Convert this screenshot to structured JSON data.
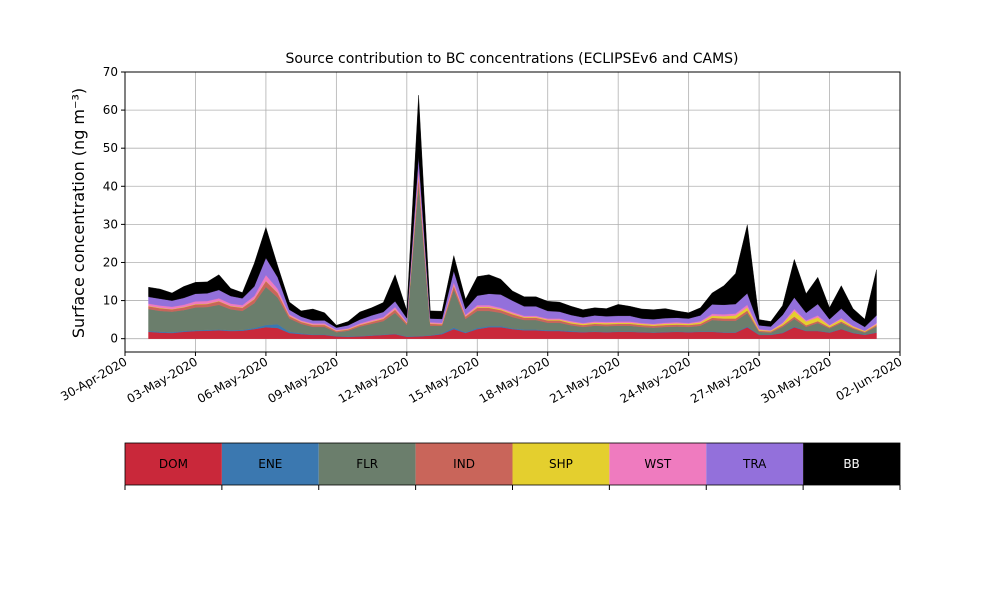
{
  "chart_data": {
    "type": "area",
    "title": "Source contribution to BC concentrations (ECLIPSEv6 and CAMS)",
    "xlabel": "",
    "ylabel": "Surface concentration (ng m⁻³)",
    "ylim": [
      -3.5,
      70
    ],
    "yticks": [
      0,
      10,
      20,
      30,
      40,
      50,
      60,
      70
    ],
    "xlim": [
      "2020-04-30",
      "2020-06-02"
    ],
    "xticks": [
      "30-Apr-2020",
      "03-May-2020",
      "06-May-2020",
      "09-May-2020",
      "12-May-2020",
      "15-May-2020",
      "18-May-2020",
      "21-May-2020",
      "24-May-2020",
      "27-May-2020",
      "30-May-2020",
      "02-Jun-2020"
    ],
    "grid": true,
    "stacked": true,
    "x": [
      "2020-05-01",
      "2020-05-01 12:00",
      "2020-05-02",
      "2020-05-02 12:00",
      "2020-05-03",
      "2020-05-03 12:00",
      "2020-05-04",
      "2020-05-04 12:00",
      "2020-05-05",
      "2020-05-05 12:00",
      "2020-05-06",
      "2020-05-06 12:00",
      "2020-05-07",
      "2020-05-07 12:00",
      "2020-05-08",
      "2020-05-08 12:00",
      "2020-05-09",
      "2020-05-09 12:00",
      "2020-05-10",
      "2020-05-10 12:00",
      "2020-05-11",
      "2020-05-11 12:00",
      "2020-05-12",
      "2020-05-12 12:00",
      "2020-05-13",
      "2020-05-13 12:00",
      "2020-05-14",
      "2020-05-14 12:00",
      "2020-05-15",
      "2020-05-15 12:00",
      "2020-05-16",
      "2020-05-16 12:00",
      "2020-05-17",
      "2020-05-17 12:00",
      "2020-05-18",
      "2020-05-18 12:00",
      "2020-05-19",
      "2020-05-19 12:00",
      "2020-05-20",
      "2020-05-20 12:00",
      "2020-05-21",
      "2020-05-21 12:00",
      "2020-05-22",
      "2020-05-22 12:00",
      "2020-05-23",
      "2020-05-23 12:00",
      "2020-05-24",
      "2020-05-24 12:00",
      "2020-05-25",
      "2020-05-25 12:00",
      "2020-05-26",
      "2020-05-26 12:00",
      "2020-05-27",
      "2020-05-27 12:00",
      "2020-05-28",
      "2020-05-28 12:00",
      "2020-05-29",
      "2020-05-29 12:00",
      "2020-05-30",
      "2020-05-30 12:00",
      "2020-05-31",
      "2020-05-31 12:00",
      "2020-06-01"
    ],
    "series": [
      {
        "name": "DOM",
        "color": "#c9283a",
        "values": [
          1.8,
          1.6,
          1.5,
          1.8,
          2.0,
          2.1,
          2.2,
          2.0,
          2.1,
          2.5,
          3.0,
          2.8,
          1.5,
          1.2,
          1.0,
          1.0,
          0.6,
          0.5,
          0.6,
          0.8,
          1.0,
          1.2,
          0.5,
          0.6,
          0.8,
          1.2,
          2.5,
          1.5,
          2.5,
          3.0,
          3.0,
          2.5,
          2.2,
          2.2,
          2.0,
          2.0,
          1.8,
          1.7,
          1.8,
          1.7,
          1.8,
          1.8,
          1.7,
          1.6,
          1.7,
          1.8,
          1.7,
          1.8,
          1.8,
          1.6,
          1.6,
          3.0,
          1.0,
          1.0,
          1.5,
          3.0,
          2.0,
          2.0,
          1.6,
          2.5,
          1.5,
          1.0,
          1.6
        ]
      },
      {
        "name": "ENE",
        "color": "#3b78b0",
        "values": [
          0.2,
          0.2,
          0.2,
          0.2,
          0.2,
          0.2,
          0.2,
          0.2,
          0.2,
          0.3,
          0.6,
          1.0,
          0.3,
          0.2,
          0.1,
          0.1,
          0.1,
          0.1,
          0.1,
          0.1,
          0.1,
          0.1,
          0.1,
          0.1,
          0.1,
          0.2,
          0.4,
          0.2,
          0.3,
          0.3,
          0.3,
          0.2,
          0.2,
          0.2,
          0.2,
          0.2,
          0.2,
          0.1,
          0.1,
          0.1,
          0.1,
          0.1,
          0.1,
          0.1,
          0.1,
          0.1,
          0.1,
          0.1,
          0.1,
          0.1,
          0.1,
          0.2,
          0.1,
          0.1,
          0.1,
          0.2,
          0.1,
          0.1,
          0.1,
          0.1,
          0.1,
          0.1,
          0.1
        ]
      },
      {
        "name": "FLR",
        "color": "#6b7e6c",
        "values": [
          5.8,
          5.5,
          5.4,
          5.5,
          6.0,
          6.0,
          6.5,
          5.5,
          5.0,
          6.5,
          10.0,
          7.0,
          3.5,
          2.5,
          2.0,
          2.0,
          1.0,
          1.5,
          2.5,
          3.0,
          3.5,
          5.5,
          3.0,
          40.0,
          2.5,
          2.0,
          10.0,
          3.5,
          4.5,
          4.0,
          3.5,
          3.0,
          2.5,
          2.5,
          2.0,
          2.0,
          1.5,
          1.3,
          1.5,
          1.5,
          1.5,
          1.5,
          1.3,
          1.2,
          1.3,
          1.3,
          1.3,
          1.5,
          3.0,
          3.0,
          3.0,
          3.5,
          0.7,
          0.5,
          1.5,
          2.0,
          1.0,
          2.0,
          1.0,
          1.5,
          1.0,
          0.5,
          1.5
        ]
      },
      {
        "name": "IND",
        "color": "#c9655a",
        "values": [
          0.7,
          0.7,
          0.6,
          0.7,
          0.8,
          0.8,
          0.9,
          0.8,
          0.8,
          1.0,
          1.5,
          1.2,
          0.6,
          0.5,
          0.5,
          0.5,
          0.3,
          0.3,
          0.4,
          0.5,
          0.6,
          0.8,
          0.4,
          2.0,
          0.5,
          0.4,
          1.0,
          0.6,
          0.8,
          0.8,
          0.7,
          0.7,
          0.6,
          0.6,
          0.6,
          0.6,
          0.5,
          0.5,
          0.5,
          0.5,
          0.5,
          0.5,
          0.5,
          0.5,
          0.5,
          0.5,
          0.5,
          0.5,
          0.6,
          0.6,
          0.6,
          0.7,
          0.3,
          0.3,
          0.4,
          0.6,
          0.4,
          0.5,
          0.3,
          0.4,
          0.3,
          0.2,
          0.4
        ]
      },
      {
        "name": "SHP",
        "color": "#e4cf2e",
        "values": [
          0.1,
          0.1,
          0.1,
          0.1,
          0.1,
          0.1,
          0.1,
          0.1,
          0.1,
          0.1,
          0.1,
          0.1,
          0.1,
          0.1,
          0.1,
          0.1,
          0.1,
          0.1,
          0.1,
          0.1,
          0.1,
          0.1,
          0.1,
          0.2,
          0.1,
          0.1,
          0.1,
          0.1,
          0.2,
          0.2,
          0.2,
          0.2,
          0.2,
          0.2,
          0.2,
          0.2,
          0.3,
          0.3,
          0.3,
          0.3,
          0.3,
          0.3,
          0.3,
          0.3,
          0.3,
          0.3,
          0.3,
          0.4,
          0.5,
          0.6,
          0.8,
          0.8,
          0.2,
          0.2,
          0.4,
          1.5,
          1.0,
          1.0,
          0.4,
          0.6,
          0.3,
          0.2,
          0.2
        ]
      },
      {
        "name": "WST",
        "color": "#ef7bbf",
        "values": [
          0.6,
          0.6,
          0.6,
          0.6,
          0.7,
          0.7,
          0.7,
          0.6,
          0.6,
          0.8,
          1.5,
          1.0,
          0.4,
          0.3,
          0.3,
          0.3,
          0.2,
          0.2,
          0.3,
          0.4,
          0.4,
          0.6,
          0.3,
          2.0,
          0.3,
          0.3,
          0.8,
          0.4,
          0.5,
          0.5,
          0.4,
          0.4,
          0.3,
          0.3,
          0.3,
          0.3,
          0.3,
          0.2,
          0.3,
          0.3,
          0.3,
          0.3,
          0.2,
          0.2,
          0.3,
          0.3,
          0.2,
          0.3,
          0.5,
          0.5,
          0.5,
          0.7,
          0.2,
          0.1,
          0.3,
          0.5,
          0.3,
          0.5,
          0.2,
          0.3,
          0.2,
          0.1,
          0.3
        ]
      },
      {
        "name": "TRA",
        "color": "#9370db",
        "values": [
          1.8,
          1.8,
          1.6,
          1.8,
          2.0,
          2.0,
          2.2,
          2.0,
          1.8,
          2.5,
          4.5,
          3.0,
          1.2,
          1.0,
          0.8,
          0.8,
          0.6,
          0.8,
          1.0,
          1.2,
          1.3,
          1.5,
          1.0,
          3.0,
          1.0,
          1.0,
          3.0,
          1.5,
          2.5,
          3.0,
          3.5,
          3.0,
          2.5,
          2.5,
          2.0,
          1.8,
          1.6,
          1.5,
          1.6,
          1.5,
          1.5,
          1.5,
          1.2,
          1.2,
          1.2,
          1.2,
          1.2,
          1.5,
          2.5,
          2.5,
          2.5,
          3.0,
          1.0,
          1.0,
          2.0,
          3.0,
          2.0,
          3.0,
          1.5,
          2.5,
          1.5,
          1.0,
          2.0
        ]
      },
      {
        "name": "BB",
        "color": "#000000",
        "values": [
          2.5,
          2.5,
          2.0,
          3.0,
          3.0,
          3.0,
          4.0,
          2.0,
          1.5,
          6.0,
          8.0,
          3.0,
          2.0,
          1.5,
          3.0,
          2.0,
          0.6,
          1.0,
          2.0,
          2.0,
          2.5,
          7.0,
          2.0,
          16.0,
          2.0,
          2.0,
          4.0,
          2.5,
          5.0,
          5.0,
          4.0,
          2.5,
          2.5,
          2.5,
          2.5,
          2.5,
          2.3,
          2.0,
          2.0,
          2.0,
          3.0,
          2.5,
          2.5,
          2.5,
          2.5,
          1.8,
          1.5,
          2.0,
          3.0,
          5.0,
          8.0,
          18.0,
          1.5,
          1.3,
          2.5,
          10.0,
          5.0,
          7.0,
          3.0,
          6.0,
          3.0,
          2.0,
          12.0
        ]
      }
    ],
    "legend": {
      "placement": "bottom",
      "entries": [
        "DOM",
        "ENE",
        "FLR",
        "IND",
        "SHP",
        "WST",
        "TRA",
        "BB"
      ]
    }
  }
}
